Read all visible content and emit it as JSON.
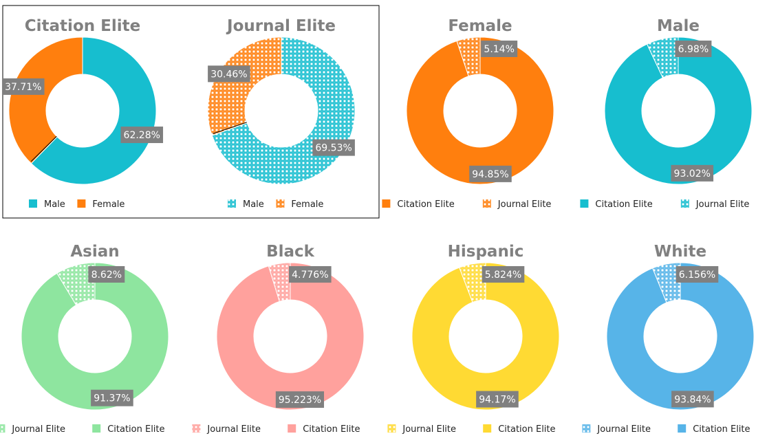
{
  "chart_data": [
    {
      "type": "pie",
      "title": "Citation Elite",
      "slices": [
        {
          "label": "Male",
          "value": 62.28,
          "display": "62.28%",
          "color": "#17becf",
          "pattern": false
        },
        {
          "label": "Female",
          "value": 37.71,
          "display": "37.71%",
          "color": "#ff7f0e",
          "pattern": false
        }
      ],
      "legend": {
        "placement": "bottom",
        "entries": [
          "Male",
          "Female"
        ]
      }
    },
    {
      "type": "pie",
      "title": "Journal Elite",
      "slices": [
        {
          "label": "Male",
          "value": 69.53,
          "display": "69.53%",
          "color": "#17becf",
          "pattern": true
        },
        {
          "label": "Female",
          "value": 30.46,
          "display": "30.46%",
          "color": "#ff7f0e",
          "pattern": true
        }
      ],
      "legend": {
        "placement": "bottom",
        "entries": [
          "Male",
          "Female"
        ]
      }
    },
    {
      "type": "pie",
      "title": "Female",
      "slices": [
        {
          "label": "Citation Elite",
          "value": 94.85,
          "display": "94.85%",
          "color": "#ff7f0e",
          "pattern": false
        },
        {
          "label": "Journal Elite",
          "value": 5.14,
          "display": "5.14%",
          "color": "#ff7f0e",
          "pattern": true
        }
      ],
      "legend": {
        "placement": "bottom",
        "entries": [
          "Citation Elite",
          "Journal Elite"
        ]
      }
    },
    {
      "type": "pie",
      "title": "Male",
      "slices": [
        {
          "label": "Citation Elite",
          "value": 93.02,
          "display": "93.02%",
          "color": "#17becf",
          "pattern": false
        },
        {
          "label": "Journal Elite",
          "value": 6.98,
          "display": "6.98%",
          "color": "#17becf",
          "pattern": true
        }
      ],
      "legend": {
        "placement": "bottom",
        "entries": [
          "Citation Elite",
          "Journal Elite"
        ]
      }
    },
    {
      "type": "pie",
      "title": "Asian",
      "slices": [
        {
          "label": "Citation Elite",
          "value": 91.37,
          "display": "91.37%",
          "color": "#8ee59f",
          "pattern": false
        },
        {
          "label": "Journal Elite",
          "value": 8.62,
          "display": "8.62%",
          "color": "#8ee59f",
          "pattern": true
        }
      ],
      "legend": {
        "placement": "bottom",
        "entries": [
          "Journal Elite",
          "Citation Elite"
        ]
      }
    },
    {
      "type": "pie",
      "title": "Black",
      "slices": [
        {
          "label": "Citation Elite",
          "value": 95.223,
          "display": "95.223%",
          "color": "#ffa19d",
          "pattern": false
        },
        {
          "label": "Journal Elite",
          "value": 4.776,
          "display": "4.776%",
          "color": "#ffa19d",
          "pattern": true
        }
      ],
      "legend": {
        "placement": "bottom",
        "entries": [
          "Journal Elite",
          "Citation Elite"
        ]
      }
    },
    {
      "type": "pie",
      "title": "Hispanic",
      "slices": [
        {
          "label": "Citation Elite",
          "value": 94.17,
          "display": "94.17%",
          "color": "#ffda33",
          "pattern": false
        },
        {
          "label": "Journal Elite",
          "value": 5.824,
          "display": "5.824%",
          "color": "#ffda33",
          "pattern": true
        }
      ],
      "legend": {
        "placement": "bottom",
        "entries": [
          "Journal Elite",
          "Citation Elite"
        ]
      }
    },
    {
      "type": "pie",
      "title": "White",
      "slices": [
        {
          "label": "Citation Elite",
          "value": 93.84,
          "display": "93.84%",
          "color": "#57b4e8",
          "pattern": false
        },
        {
          "label": "Journal Elite",
          "value": 6.156,
          "display": "6.156%",
          "color": "#57b4e8",
          "pattern": true
        }
      ],
      "legend": {
        "placement": "bottom",
        "entries": [
          "Journal Elite",
          "Citation Elite"
        ]
      }
    }
  ]
}
